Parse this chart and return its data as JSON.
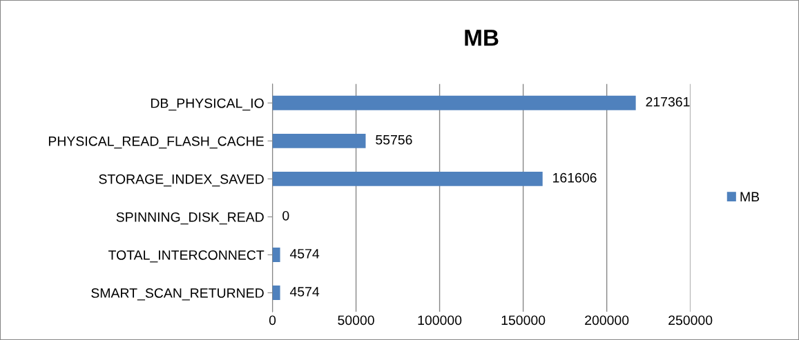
{
  "chart_data": {
    "type": "bar",
    "orientation": "horizontal",
    "title": "MB",
    "categories": [
      "DB_PHYSICAL_IO",
      "PHYSICAL_READ_FLASH_CACHE",
      "STORAGE_INDEX_SAVED",
      "SPINNING_DISK_READ",
      "TOTAL_INTERCONNECT",
      "SMART_SCAN_RETURNED"
    ],
    "series": [
      {
        "name": "MB",
        "color": "#4f81bd",
        "values": [
          217361,
          55756,
          161606,
          0,
          4574,
          4574
        ]
      }
    ],
    "xlim": [
      0,
      250000
    ],
    "xticks": [
      0,
      50000,
      100000,
      150000,
      200000,
      250000
    ],
    "grid": "x",
    "legend": "right",
    "data_labels": true
  }
}
